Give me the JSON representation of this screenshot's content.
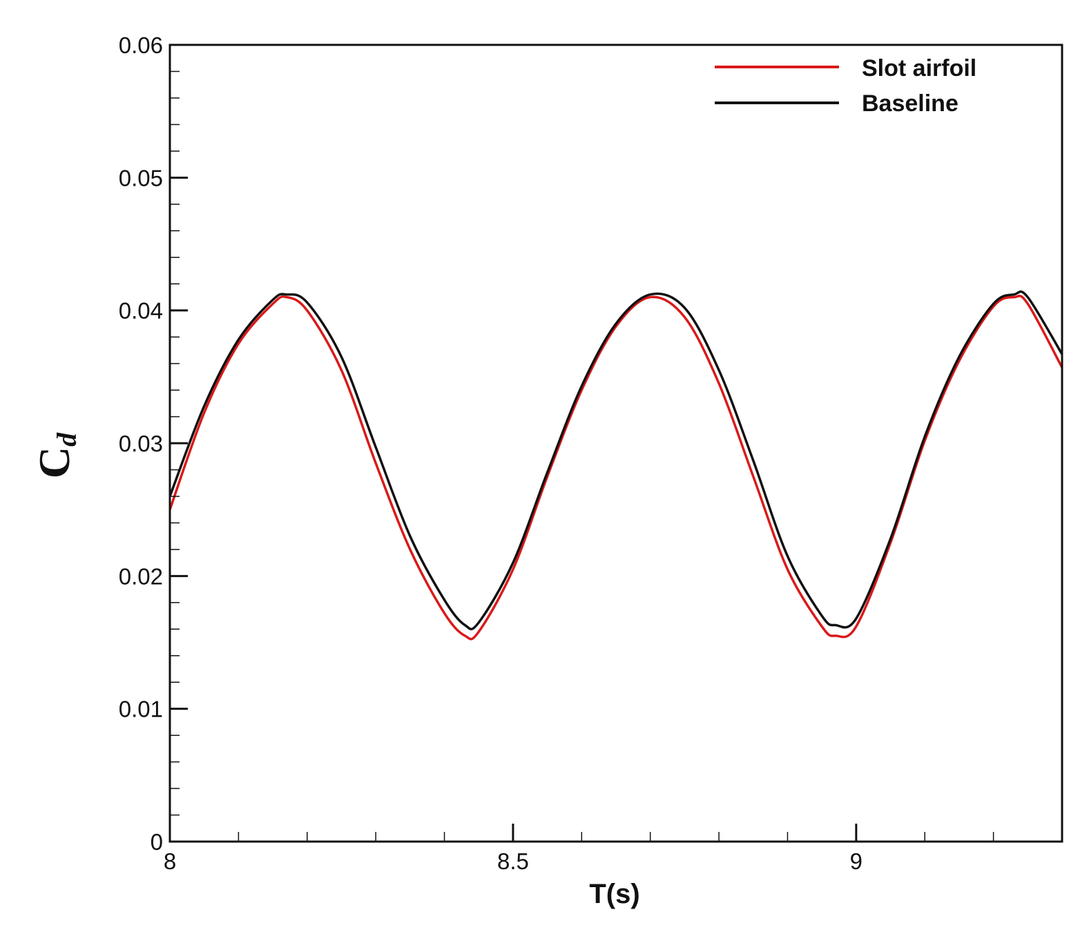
{
  "chart_data": {
    "type": "line",
    "title": "",
    "xlabel": "T(s)",
    "ylabel": {
      "main": "C",
      "sub": "d"
    },
    "xlim": [
      8.0,
      9.3
    ],
    "ylim": [
      0,
      0.06
    ],
    "x_ticks": [
      {
        "value": 8.0,
        "label": "8"
      },
      {
        "value": 8.5,
        "label": "8.5"
      },
      {
        "value": 9.0,
        "label": "9"
      }
    ],
    "x_minor_step": 0.1,
    "y_ticks": [
      {
        "value": 0.0,
        "label": "0"
      },
      {
        "value": 0.01,
        "label": "0.01"
      },
      {
        "value": 0.02,
        "label": "0.02"
      },
      {
        "value": 0.03,
        "label": "0.03"
      },
      {
        "value": 0.04,
        "label": "0.04"
      },
      {
        "value": 0.05,
        "label": "0.05"
      },
      {
        "value": 0.06,
        "label": "0.06"
      }
    ],
    "y_minor_step": 0.002,
    "grid": false,
    "legend_position": "top-right",
    "series": [
      {
        "name": "Slot airfoil",
        "color": "#d91a1a",
        "x": [
          8.0,
          8.05,
          8.1,
          8.15,
          8.17,
          8.2,
          8.25,
          8.3,
          8.35,
          8.4,
          8.43,
          8.45,
          8.5,
          8.55,
          8.6,
          8.65,
          8.7,
          8.75,
          8.8,
          8.85,
          8.9,
          8.95,
          8.97,
          9.0,
          9.05,
          9.1,
          9.15,
          9.2,
          9.23,
          9.25,
          9.3
        ],
        "values": [
          0.025,
          0.0323,
          0.0375,
          0.0405,
          0.041,
          0.04,
          0.0355,
          0.0285,
          0.022,
          0.0172,
          0.0155,
          0.0158,
          0.0205,
          0.0275,
          0.034,
          0.0388,
          0.041,
          0.0395,
          0.0345,
          0.0275,
          0.0205,
          0.0162,
          0.0155,
          0.0162,
          0.0225,
          0.0302,
          0.0362,
          0.0403,
          0.041,
          0.0405,
          0.0357
        ]
      },
      {
        "name": "Baseline",
        "color": "#111111",
        "x": [
          8.0,
          8.05,
          8.1,
          8.15,
          8.17,
          8.2,
          8.25,
          8.3,
          8.35,
          8.4,
          8.43,
          8.45,
          8.5,
          8.55,
          8.6,
          8.65,
          8.7,
          8.75,
          8.8,
          8.85,
          8.9,
          8.95,
          8.97,
          9.0,
          9.05,
          9.1,
          9.15,
          9.2,
          9.23,
          9.25,
          9.3
        ],
        "values": [
          0.026,
          0.0328,
          0.0378,
          0.0408,
          0.0412,
          0.0406,
          0.0365,
          0.0297,
          0.023,
          0.0182,
          0.0163,
          0.0165,
          0.021,
          0.0278,
          0.0343,
          0.039,
          0.0412,
          0.0402,
          0.0355,
          0.0287,
          0.0215,
          0.017,
          0.0163,
          0.0168,
          0.0228,
          0.0305,
          0.0365,
          0.0405,
          0.0412,
          0.041,
          0.0367
        ]
      }
    ]
  }
}
